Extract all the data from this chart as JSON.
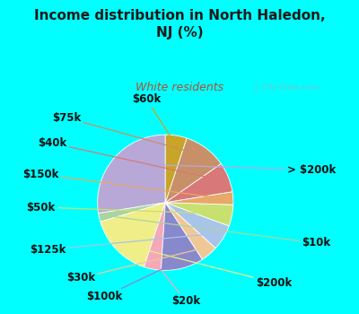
{
  "title": "Income distribution in North Haledon,\nNJ (%)",
  "subtitle": "White residents",
  "title_color": "#1a1a1a",
  "subtitle_color": "#b05030",
  "background_fig": "#00ffff",
  "background_chart": "#dff2e8",
  "watermark": "ⓘ City-Data.com",
  "labels": [
    "> $200k",
    "$10k",
    "$200k",
    "$20k",
    "$100k",
    "$30k",
    "$125k",
    "$50k",
    "$150k",
    "$40k",
    "$75k",
    "$60k"
  ],
  "values": [
    27,
    2,
    15,
    4,
    10,
    4,
    6,
    5,
    3,
    7,
    10,
    5
  ],
  "colors": [
    "#b8a8d8",
    "#aad4a0",
    "#f0ee88",
    "#f4a8b8",
    "#8888cc",
    "#f0c898",
    "#a8c4e8",
    "#c8e070",
    "#e8a868",
    "#d87878",
    "#c89068",
    "#c8a428"
  ],
  "label_fontsize": 8.5,
  "figsize": [
    4.0,
    3.5
  ],
  "dpi": 100,
  "startangle": 90
}
